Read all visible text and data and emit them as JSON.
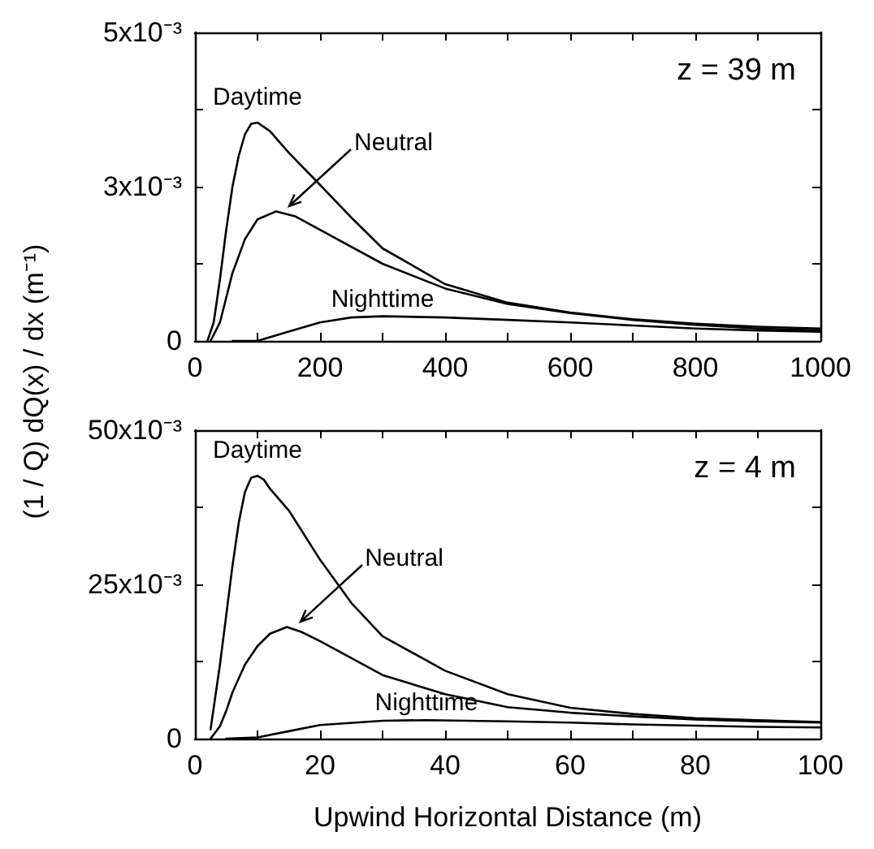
{
  "chart_data": [
    {
      "type": "line",
      "ylabel": "(1 / Q) dQ(x) / dx (m⁻¹)",
      "annotations": [
        "z = 39 m"
      ],
      "grid": false,
      "marker": "none",
      "line_style": "solid",
      "xlim": [
        0,
        1000
      ],
      "xticks": [
        0,
        {
          "value": 100,
          "label": null
        },
        200,
        {
          "value": 300,
          "label": null
        },
        400,
        {
          "value": 500,
          "label": null
        },
        600,
        {
          "value": 700,
          "label": null
        },
        800,
        {
          "value": 900,
          "label": null
        },
        1000
      ],
      "ylim": [
        0,
        0.005
      ],
      "yticks": [
        {
          "value": 0,
          "label": "0"
        },
        {
          "value": 0.00125,
          "label": null
        },
        {
          "value": 0.0025,
          "label": "3x10⁻³"
        },
        {
          "value": 0.00375,
          "label": null
        },
        {
          "value": 0.005,
          "label": "5x10⁻³"
        }
      ],
      "series": [
        {
          "name": "Daytime",
          "color": "#000000",
          "x": [
            20,
            30,
            40,
            50,
            60,
            70,
            80,
            90,
            100,
            120,
            150,
            200,
            250,
            300,
            400,
            500,
            600,
            700,
            800,
            900,
            1000
          ],
          "values": [
            0,
            0.0003,
            0.001,
            0.0018,
            0.0025,
            0.003,
            0.00335,
            0.00352,
            0.00354,
            0.0034,
            0.00305,
            0.00253,
            0.002,
            0.0015,
            0.00092,
            0.00062,
            0.00046,
            0.00035,
            0.00028,
            0.00023,
            0.0002
          ]
        },
        {
          "name": "Neutral",
          "color": "#000000",
          "x": [
            25,
            40,
            50,
            60,
            80,
            100,
            130,
            160,
            200,
            300,
            400,
            500,
            600,
            700,
            800,
            900,
            1000
          ],
          "values": [
            0,
            0.0003,
            0.0007,
            0.0011,
            0.00165,
            0.00197,
            0.0021,
            0.00202,
            0.0018,
            0.00125,
            0.00085,
            0.0006,
            0.00045,
            0.00034,
            0.00026,
            0.0002,
            0.00017
          ]
        },
        {
          "name": "Nighttime",
          "color": "#000000",
          "x": [
            60,
            100,
            150,
            200,
            250,
            300,
            400,
            500,
            600,
            700,
            800,
            900,
            1000
          ],
          "values": [
            0,
            0,
            0.00015,
            0.0003,
            0.00038,
            0.0004,
            0.00038,
            0.00034,
            0.0003,
            0.00025,
            0.0002,
            0.00017,
            0.00015
          ]
        }
      ]
    },
    {
      "type": "line",
      "xlabel": "Upwind Horizontal Distance (m)",
      "annotations": [
        "z = 4 m"
      ],
      "grid": false,
      "marker": "none",
      "line_style": "solid",
      "xlim": [
        0,
        100
      ],
      "xticks": [
        0,
        {
          "value": 10,
          "label": null
        },
        20,
        {
          "value": 30,
          "label": null
        },
        40,
        {
          "value": 50,
          "label": null
        },
        60,
        {
          "value": 70,
          "label": null
        },
        80,
        {
          "value": 90,
          "label": null
        },
        100
      ],
      "ylim": [
        0,
        0.05
      ],
      "yticks": [
        {
          "value": 0,
          "label": "0"
        },
        {
          "value": 0.0125,
          "label": null
        },
        {
          "value": 0.025,
          "label": "25x10⁻³"
        },
        {
          "value": 0.0375,
          "label": null
        },
        {
          "value": 0.05,
          "label": "50x10⁻³"
        }
      ],
      "series": [
        {
          "name": "Daytime",
          "color": "#000000",
          "x": [
            2.5,
            4,
            5,
            6,
            7,
            8,
            9,
            10,
            11,
            12,
            15,
            20,
            25,
            30,
            40,
            50,
            60,
            70,
            80,
            90,
            100
          ],
          "values": [
            0.0015,
            0.012,
            0.02,
            0.028,
            0.035,
            0.04,
            0.0423,
            0.0426,
            0.042,
            0.0405,
            0.037,
            0.029,
            0.022,
            0.0166,
            0.011,
            0.0072,
            0.005,
            0.004,
            0.0033,
            0.003,
            0.0027
          ]
        },
        {
          "name": "Neutral",
          "color": "#000000",
          "x": [
            2.5,
            4,
            5,
            6,
            8,
            10,
            12,
            14.7,
            17,
            20,
            30,
            40,
            50,
            60,
            70,
            80,
            90,
            100
          ],
          "values": [
            0,
            0.002,
            0.0045,
            0.0075,
            0.012,
            0.015,
            0.017,
            0.0181,
            0.0173,
            0.0158,
            0.0103,
            0.0072,
            0.0051,
            0.0042,
            0.0036,
            0.0031,
            0.0028,
            0.0026
          ]
        },
        {
          "name": "Nighttime",
          "color": "#000000",
          "x": [
            5,
            10,
            15,
            20,
            30,
            37,
            50,
            60,
            70,
            80,
            90,
            100
          ],
          "values": [
            0,
            0.0002,
            0.0012,
            0.0022,
            0.0029,
            0.003,
            0.0028,
            0.0026,
            0.0023,
            0.0021,
            0.0019,
            0.0018
          ]
        }
      ]
    }
  ]
}
